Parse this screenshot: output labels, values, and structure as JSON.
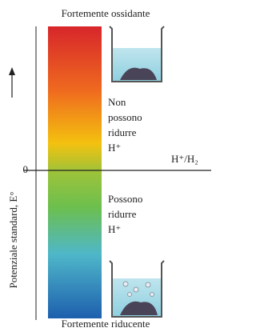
{
  "top_label": "Fortemente ossidante",
  "bottom_label": "Fortemente riducente",
  "upper_note": [
    "Non",
    "possono",
    "ridurre",
    "H⁺"
  ],
  "lower_note": [
    "Possono",
    "ridurre",
    "H⁺"
  ],
  "reference_label": "H⁺/H₂",
  "zero_label": "0",
  "axis_label": "Potenziale standard, E°"
}
